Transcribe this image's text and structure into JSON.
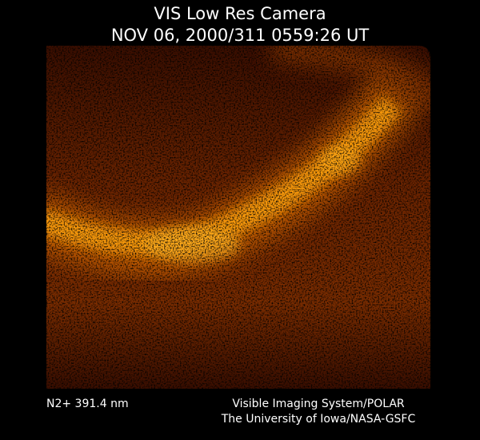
{
  "header": {
    "title": "VIS Low Res Camera",
    "timestamp": "NOV 06, 2000/311 0559:26 UT"
  },
  "footer": {
    "filter": "N2+ 391.4 nm",
    "credit": [
      "Visible Imaging System/POLAR",
      "The University of Iowa/NASA-GSFC"
    ]
  }
}
